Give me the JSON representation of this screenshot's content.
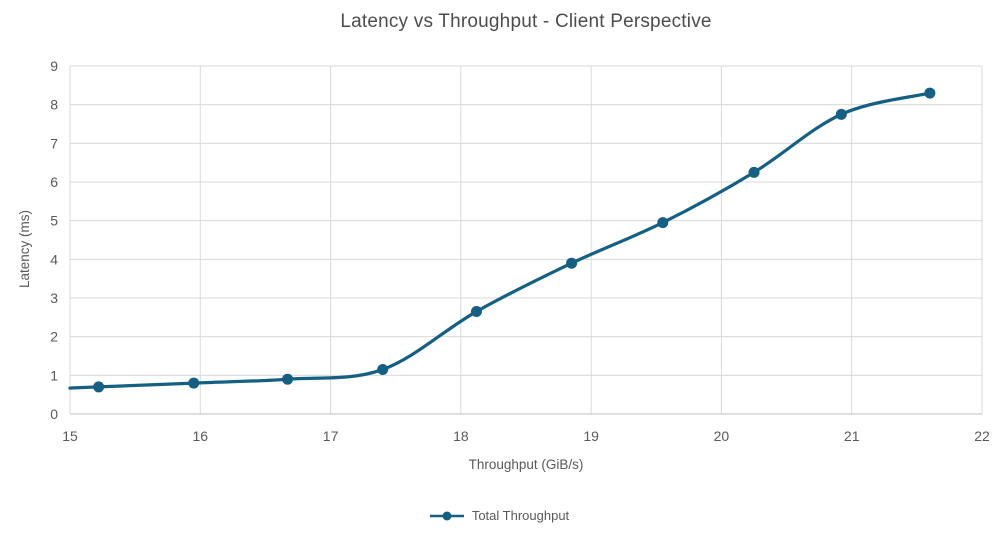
{
  "window": {
    "background": "#ffffff"
  },
  "chart_data": {
    "type": "line",
    "title": "Latency vs Throughput - Client Perspective",
    "xlabel": "Throughput (GiB/s)",
    "ylabel": "Latency (ms)",
    "xlim": [
      15,
      22
    ],
    "ylim": [
      0,
      9
    ],
    "x_ticks": [
      15,
      16,
      17,
      18,
      19,
      20,
      21,
      22
    ],
    "y_ticks": [
      0,
      1,
      2,
      3,
      4,
      5,
      6,
      7,
      8,
      9
    ],
    "grid": "both",
    "smooth": true,
    "legend_position": "bottom-center",
    "series": [
      {
        "name": "Total Throughput",
        "color": "#156082",
        "marker": "circle",
        "x": [
          15.22,
          15.95,
          16.67,
          17.4,
          18.12,
          18.85,
          19.55,
          20.25,
          20.92,
          21.6
        ],
        "y": [
          0.7,
          0.8,
          0.9,
          1.15,
          2.65,
          3.9,
          4.95,
          6.25,
          7.75,
          8.3
        ]
      }
    ],
    "colors": {
      "gridline": "#d9d9d9",
      "axis_line": "#bfbfbf",
      "tick_label": "#595959",
      "title": "#4d4d4d",
      "axis_title": "#595959",
      "legend_label": "#595959"
    }
  }
}
